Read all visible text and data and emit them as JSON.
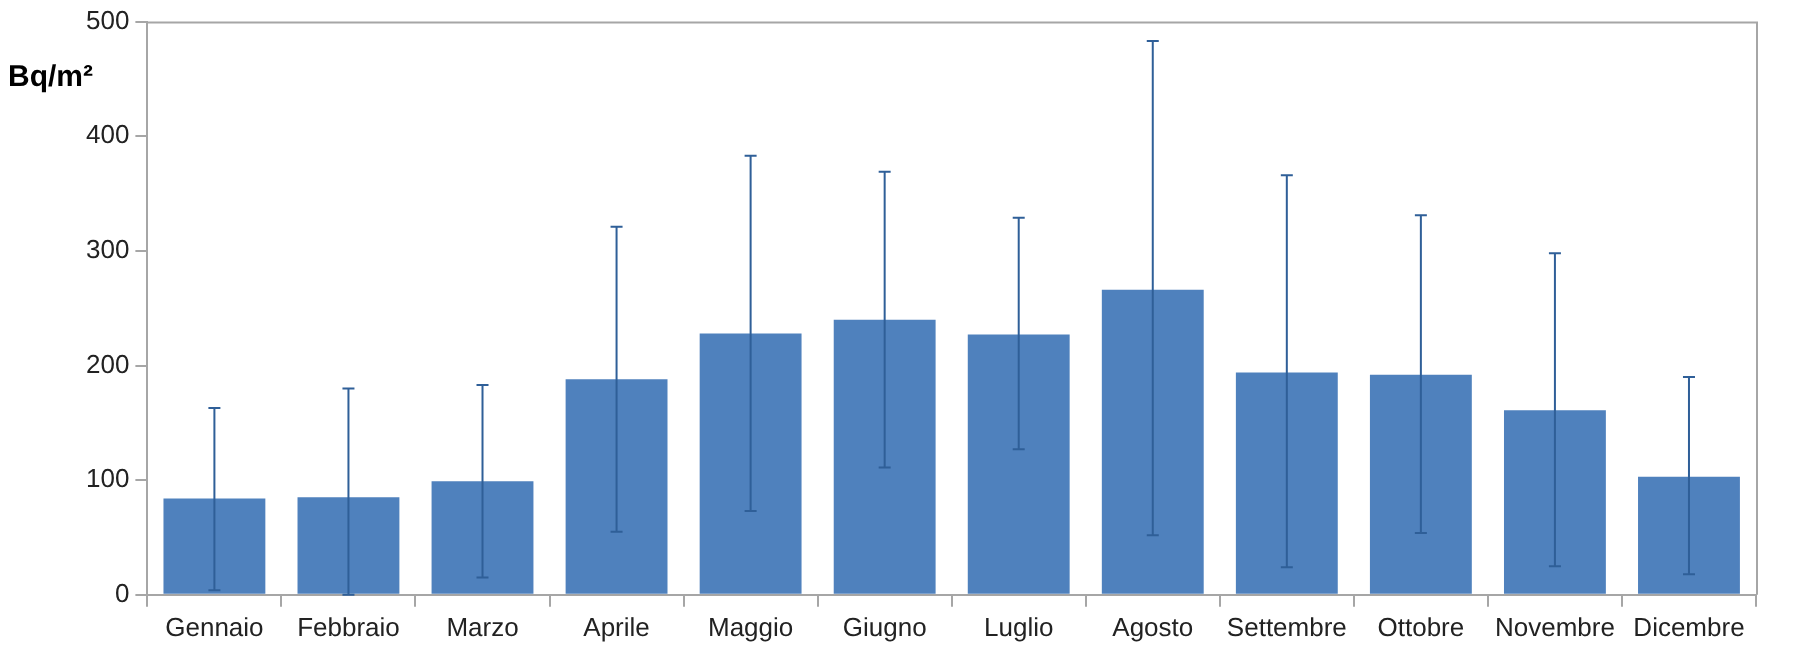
{
  "chart_data": {
    "type": "bar",
    "ylabel": "Bq/m²",
    "categories": [
      "Gennaio",
      "Febbraio",
      "Marzo",
      "Aprile",
      "Maggio",
      "Giugno",
      "Luglio",
      "Agosto",
      "Settembre",
      "Ottobre",
      "Novembre",
      "Dicembre"
    ],
    "values": [
      84,
      85,
      99,
      188,
      228,
      240,
      227,
      266,
      194,
      192,
      161,
      103
    ],
    "errors": [
      [
        4,
        163
      ],
      [
        0,
        180
      ],
      [
        15,
        183
      ],
      [
        55,
        321
      ],
      [
        73,
        383
      ],
      [
        111,
        369
      ],
      [
        127,
        329
      ],
      [
        52,
        483
      ],
      [
        24,
        366
      ],
      [
        54,
        331
      ],
      [
        25,
        298
      ],
      [
        18,
        190
      ]
    ],
    "color": "#4f81bd",
    "ylim": [
      0,
      500
    ],
    "yticks": [
      0,
      100,
      200,
      300,
      400,
      500
    ],
    "grid": false,
    "legend": false
  }
}
